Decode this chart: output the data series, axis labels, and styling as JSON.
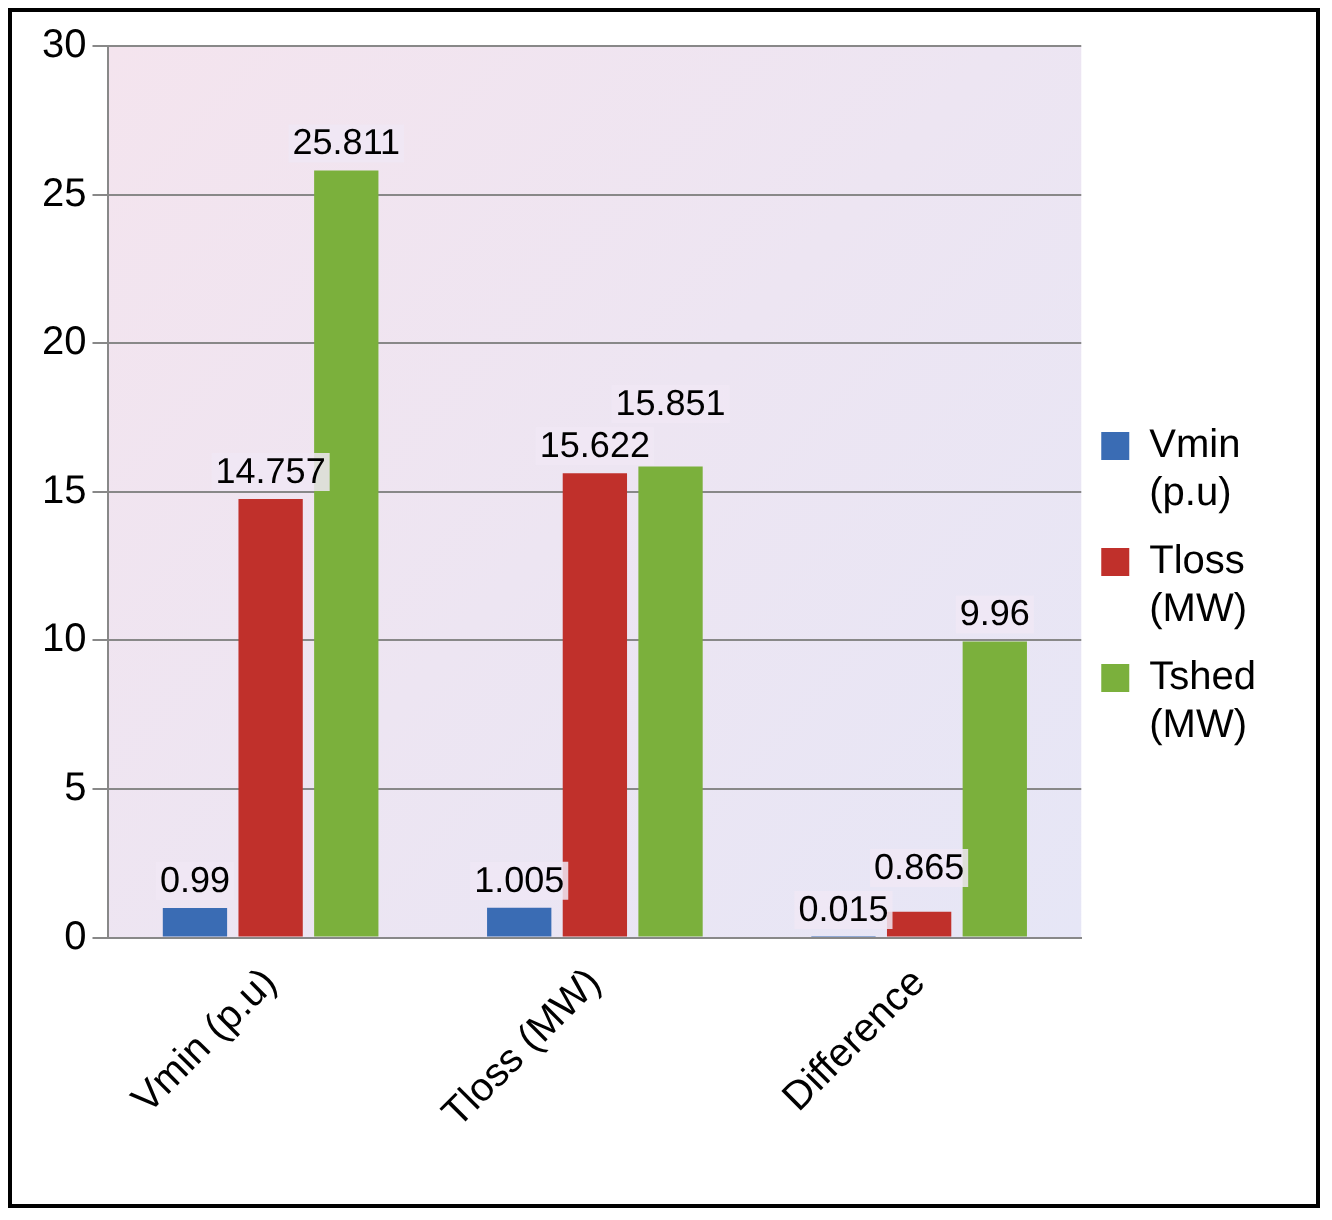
{
  "chart_data": {
    "type": "bar",
    "categories": [
      "Vmin (p.u)",
      "Tloss (MW)",
      "Difference"
    ],
    "series": [
      {
        "name": "Vmin (p.u)",
        "color": "#3a6cb4",
        "values": [
          0.99,
          1.005,
          0.015
        ]
      },
      {
        "name": "Tloss (MW)",
        "color": "#c0302b",
        "values": [
          14.757,
          15.622,
          0.865
        ]
      },
      {
        "name": "Tshed (MW)",
        "color": "#7bb03c",
        "values": [
          25.811,
          15.851,
          9.96
        ]
      }
    ],
    "ylim": [
      0,
      30
    ],
    "yticks": [
      0,
      5,
      10,
      15,
      20,
      25,
      30
    ],
    "grid": "y",
    "legend": "right",
    "data_labels": true
  }
}
